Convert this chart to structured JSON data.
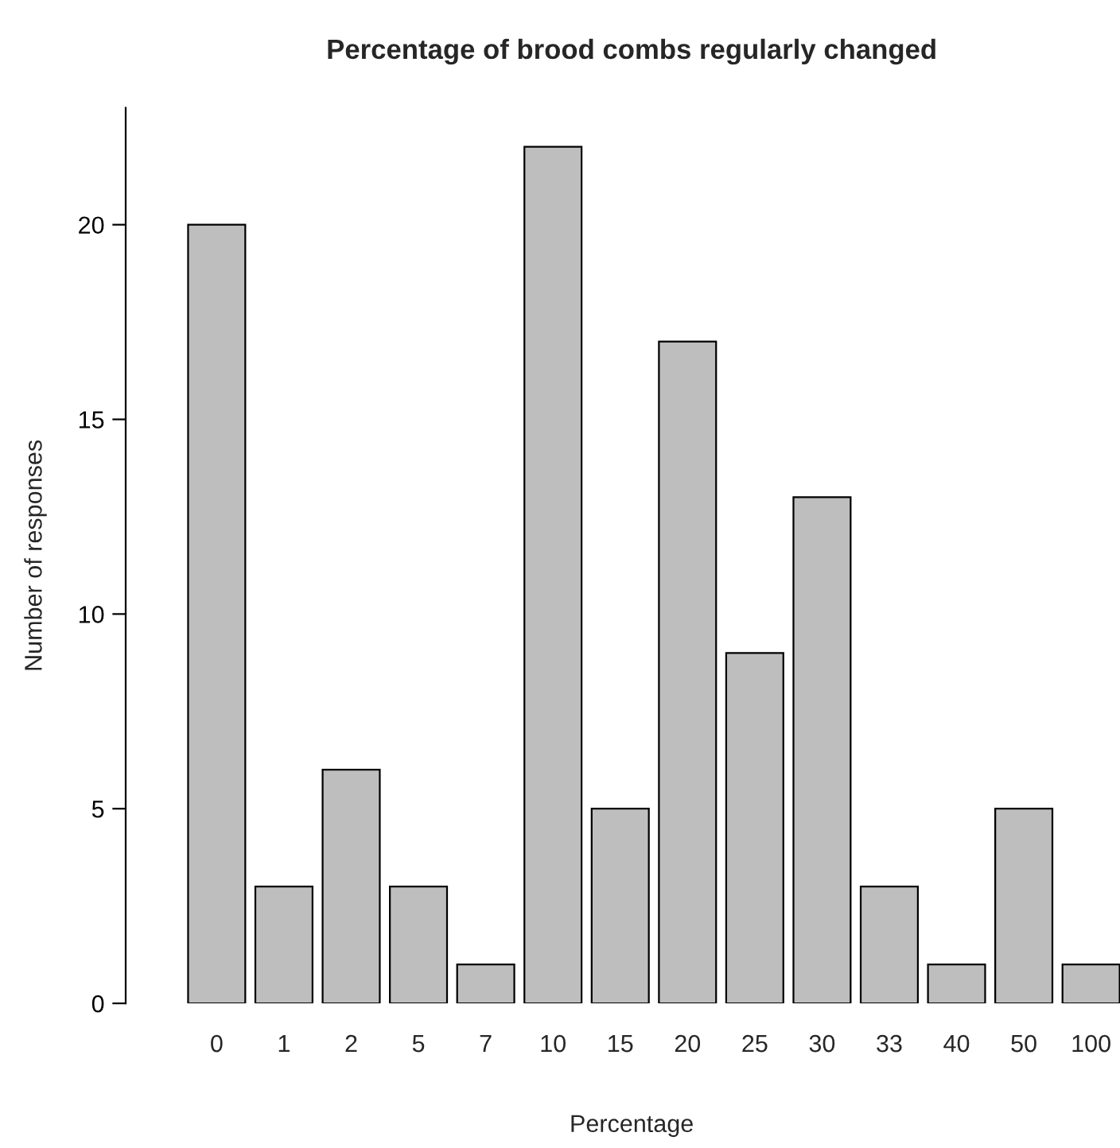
{
  "chart_data": {
    "type": "bar",
    "title": "Percentage of brood combs regularly changed",
    "xlabel": "Percentage",
    "ylabel": "Number of responses",
    "categories": [
      "0",
      "1",
      "2",
      "5",
      "7",
      "10",
      "15",
      "20",
      "25",
      "30",
      "33",
      "40",
      "50",
      "100"
    ],
    "values": [
      20,
      3,
      6,
      3,
      1,
      22,
      5,
      17,
      9,
      13,
      3,
      1,
      5,
      1
    ],
    "color": "#bebebe",
    "ylim": [
      0,
      23
    ],
    "yticks": [
      0,
      5,
      10,
      15,
      20
    ],
    "grid": false,
    "legend": false
  }
}
